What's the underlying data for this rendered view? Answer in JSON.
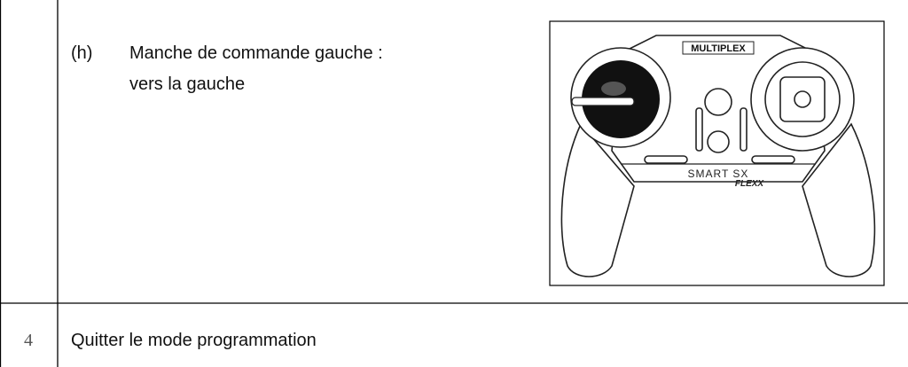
{
  "step": {
    "label": "(h)",
    "lines": [
      "Manche de commande gauche :",
      "vers la gauche"
    ]
  },
  "figure": {
    "brand": "MULTIPLEX",
    "model": "SMART SX",
    "variant": "FLEXX"
  },
  "next_row": {
    "number": "4",
    "text": "Quitter le mode programmation"
  }
}
